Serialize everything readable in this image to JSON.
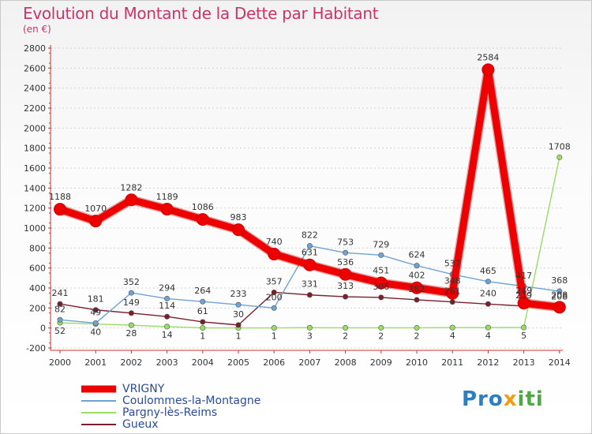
{
  "header": {
    "title": "Evolution du Montant de la Dette par Habitant",
    "subtitle": "(en €)"
  },
  "brand": {
    "part1": "Pro",
    "part2": "x",
    "part3": "iti"
  },
  "chart_data": {
    "type": "line",
    "title": "Evolution du Montant de la Dette par Habitant",
    "subtitle": "(en €)",
    "xlabel": "",
    "ylabel": "",
    "x": [
      "2000",
      "2001",
      "2002",
      "2003",
      "2004",
      "2005",
      "2006",
      "2007",
      "2008",
      "2009",
      "2010",
      "2011",
      "2012",
      "2013",
      "2014"
    ],
    "ylim": [
      -200,
      2800
    ],
    "yticks": [
      -200,
      0,
      200,
      400,
      600,
      800,
      1000,
      1200,
      1400,
      1600,
      1800,
      2000,
      2200,
      2400,
      2600,
      2800
    ],
    "grid": "horizontal",
    "legend_position": "bottom-left",
    "series": [
      {
        "name": "VRIGNY",
        "color": "#ee0000",
        "values": [
          1188,
          1070,
          1282,
          1189,
          1086,
          983,
          740,
          631,
          536,
          451,
          402,
          348,
          2584,
          249,
          208
        ],
        "labels": [
          "1188",
          "1070",
          "1282",
          "1189",
          "1086",
          "983",
          "740",
          "631",
          "536",
          "451",
          "402",
          "348",
          "2584",
          "249",
          "208"
        ]
      },
      {
        "name": "Coulommes-la-Montagne",
        "color": "#6fa3d2",
        "values": [
          82,
          49,
          352,
          294,
          264,
          233,
          200,
          822,
          753,
          729,
          624,
          537,
          465,
          417,
          368
        ],
        "labels": [
          "82",
          "49",
          "352",
          "294",
          "264",
          "233",
          "200",
          "822",
          "753",
          "729",
          "624",
          "537",
          "465",
          "417",
          "368"
        ]
      },
      {
        "name": "Pargny-lès-Reims",
        "color": "#99dd66",
        "values": [
          52,
          40,
          28,
          14,
          1,
          1,
          1,
          3,
          2,
          2,
          2,
          4,
          4,
          5,
          1708
        ],
        "labels": [
          "52",
          "40",
          "28",
          "14",
          "1",
          "1",
          "1",
          "3",
          "2",
          "2",
          "2",
          "4",
          "4",
          "5",
          "1708"
        ]
      },
      {
        "name": "Gueux",
        "color": "#7a1f2b",
        "values": [
          241,
          181,
          149,
          114,
          61,
          30,
          357,
          331,
          313,
          306,
          282,
          261,
          240,
          219,
          208
        ],
        "labels": [
          "241",
          "181",
          "149",
          "114",
          "61",
          "30",
          "357",
          "331",
          "313",
          "306",
          "282",
          "261",
          "240",
          "219",
          "208"
        ]
      }
    ]
  }
}
